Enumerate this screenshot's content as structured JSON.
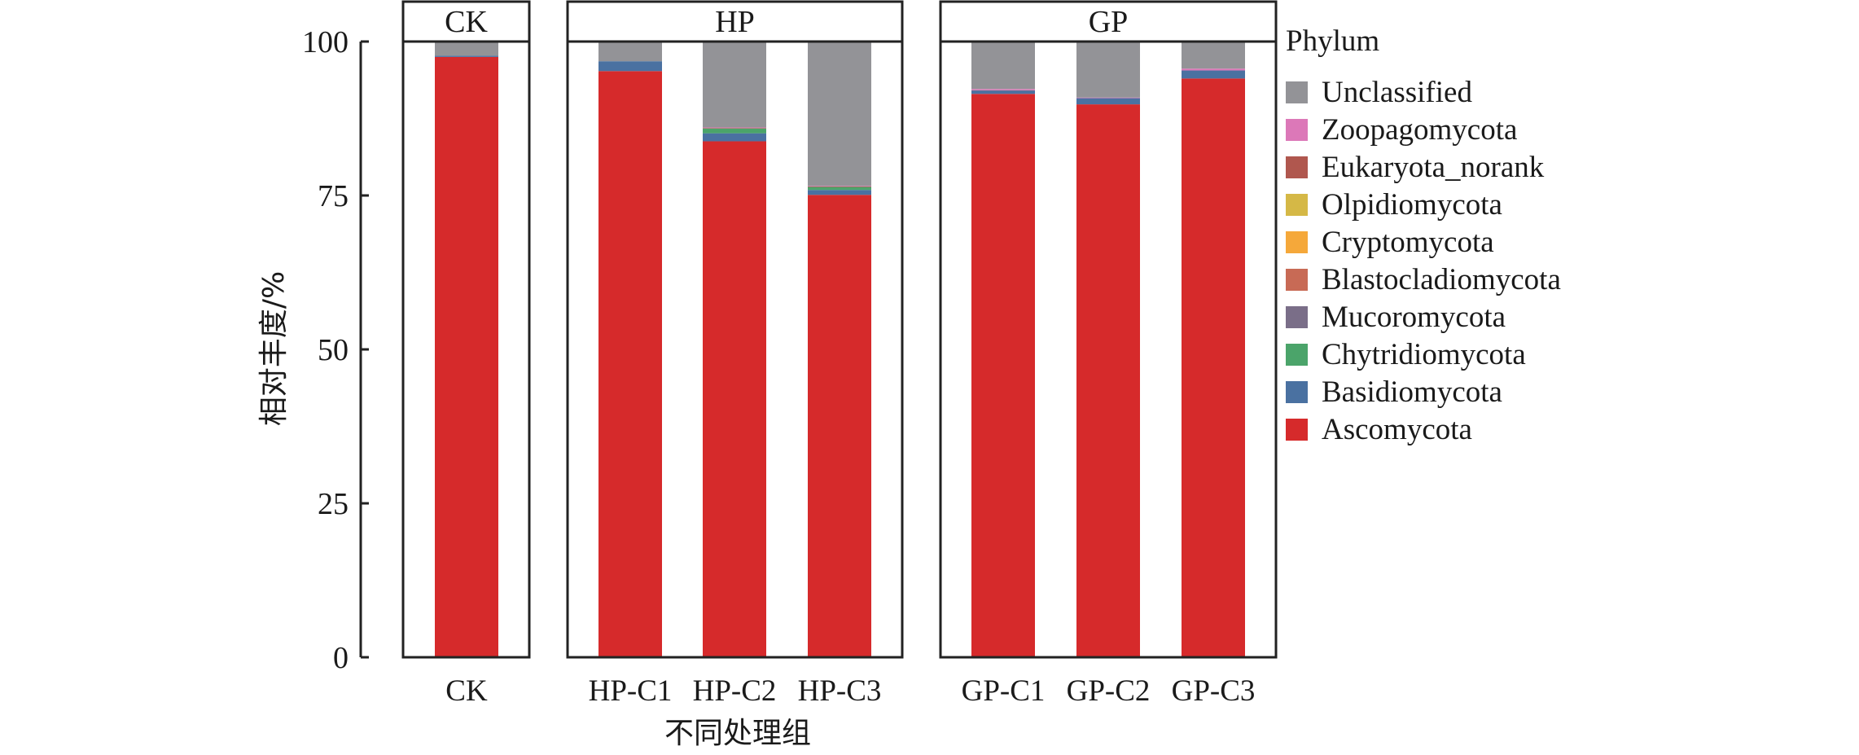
{
  "chart_data": {
    "type": "bar",
    "stacked": true,
    "title": "",
    "xlabel": "不同处理组",
    "ylabel": "相对丰度/%",
    "ylim": [
      0,
      100
    ],
    "yticks": [
      "0",
      "25",
      "50",
      "75",
      "100"
    ],
    "ytick_values": [
      0,
      25,
      50,
      75,
      100
    ],
    "grid": false,
    "legend_title": "Phylum",
    "legend_position": "right",
    "facets": [
      {
        "name": "CK",
        "categories": [
          "CK"
        ]
      },
      {
        "name": "HP",
        "categories": [
          "HP-C1",
          "HP-C2",
          "HP-C3"
        ]
      },
      {
        "name": "GP",
        "categories": [
          "GP-C1",
          "GP-C2",
          "GP-C3"
        ]
      }
    ],
    "categories": [
      "CK",
      "HP-C1",
      "HP-C2",
      "HP-C3",
      "GP-C1",
      "GP-C2",
      "GP-C3"
    ],
    "series": [
      {
        "name": "Ascomycota",
        "color": "#d62a2b",
        "values": [
          97.5,
          95.2,
          83.8,
          75.1,
          91.5,
          89.8,
          94.0
        ]
      },
      {
        "name": "Basidiomycota",
        "color": "#4a71a1",
        "values": [
          0.2,
          1.6,
          1.3,
          0.8,
          0.5,
          1.0,
          1.3
        ]
      },
      {
        "name": "Chytridiomycota",
        "color": "#4ba46a",
        "values": [
          0.0,
          0.0,
          0.8,
          0.5,
          0.0,
          0.0,
          0.0
        ]
      },
      {
        "name": "Mucoromycota",
        "color": "#7a6e88",
        "values": [
          0.0,
          0.0,
          0.0,
          0.0,
          0.1,
          0.0,
          0.0
        ]
      },
      {
        "name": "Blastocladiomycota",
        "color": "#c86a55",
        "values": [
          0.0,
          0.0,
          0.0,
          0.0,
          0.0,
          0.0,
          0.0
        ]
      },
      {
        "name": "Cryptomycota",
        "color": "#f5a83a",
        "values": [
          0.0,
          0.0,
          0.0,
          0.0,
          0.0,
          0.0,
          0.0
        ]
      },
      {
        "name": "Olpidiomycota",
        "color": "#d5b846",
        "values": [
          0.0,
          0.0,
          0.0,
          0.0,
          0.0,
          0.0,
          0.0
        ]
      },
      {
        "name": "Eukaryota_norank",
        "color": "#b0574e",
        "values": [
          0.0,
          0.0,
          0.05,
          0.05,
          0.0,
          0.0,
          0.0
        ]
      },
      {
        "name": "Zoopagomycota",
        "color": "#dc78b8",
        "values": [
          0.0,
          0.0,
          0.1,
          0.1,
          0.2,
          0.1,
          0.3
        ]
      },
      {
        "name": "Unclassified",
        "color": "#939397",
        "values": [
          2.3,
          3.2,
          13.95,
          23.45,
          7.7,
          9.1,
          4.4
        ]
      }
    ],
    "legend_order": [
      "Unclassified",
      "Zoopagomycota",
      "Eukaryota_norank",
      "Olpidiomycota",
      "Cryptomycota",
      "Blastocladiomycota",
      "Mucoromycota",
      "Chytridiomycota",
      "Basidiomycota",
      "Ascomycota"
    ]
  }
}
